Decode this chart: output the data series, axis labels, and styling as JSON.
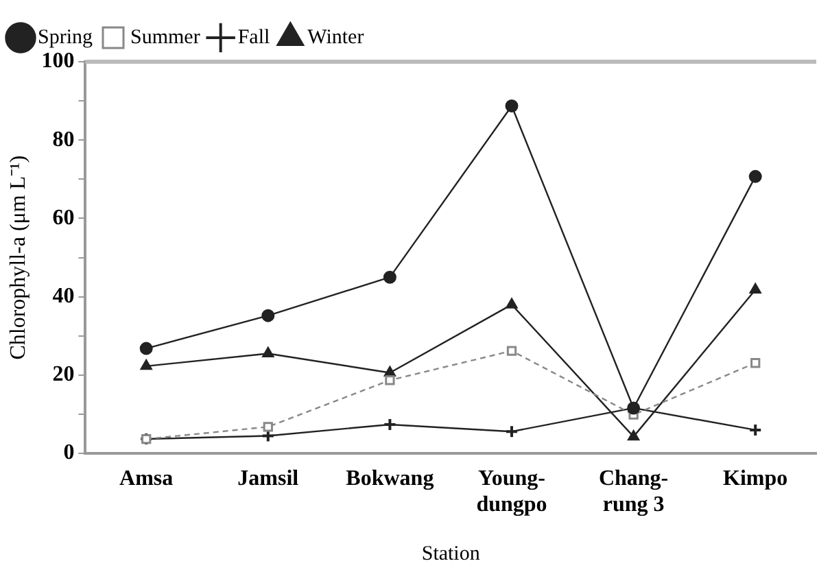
{
  "chart_data": {
    "type": "line",
    "xlabel": "Station",
    "ylabel": "Chlorophyll-a (μm L⁻¹)",
    "categories": [
      "Amsa",
      "Jamsil",
      "Bokwang",
      "Young-\ndungpo",
      "Chang-\nrung 3",
      "Kimpo"
    ],
    "series": [
      {
        "name": "Spring",
        "color": "#222222",
        "marker": "circle",
        "line_style": "solid",
        "values": [
          26.8,
          35.2,
          45,
          88.7,
          11.6,
          70.7
        ]
      },
      {
        "name": "Summer",
        "color": "#888888",
        "marker": "square",
        "line_style": "dashed",
        "values": [
          3.7,
          6.8,
          18.7,
          26.2,
          9.9,
          23.1
        ]
      },
      {
        "name": "Fall",
        "color": "#222222",
        "marker": "cross",
        "line_style": "solid",
        "values": [
          3.7,
          4.5,
          7.4,
          5.6,
          11.6,
          6
        ]
      },
      {
        "name": "Winter",
        "color": "#222222",
        "marker": "triangle",
        "line_style": "solid",
        "values": [
          22.3,
          25.5,
          20.6,
          38,
          4.3,
          41.8
        ]
      }
    ],
    "ylim": [
      0,
      100
    ],
    "yticks": [
      0,
      {
        "value": 10,
        "label": null
      },
      20,
      {
        "value": 30,
        "label": null
      },
      40,
      {
        "value": 50,
        "label": null
      },
      60,
      {
        "value": 70,
        "label": null
      },
      80,
      {
        "value": 90,
        "label": null
      },
      100
    ],
    "grid": false,
    "legend": "top left"
  }
}
